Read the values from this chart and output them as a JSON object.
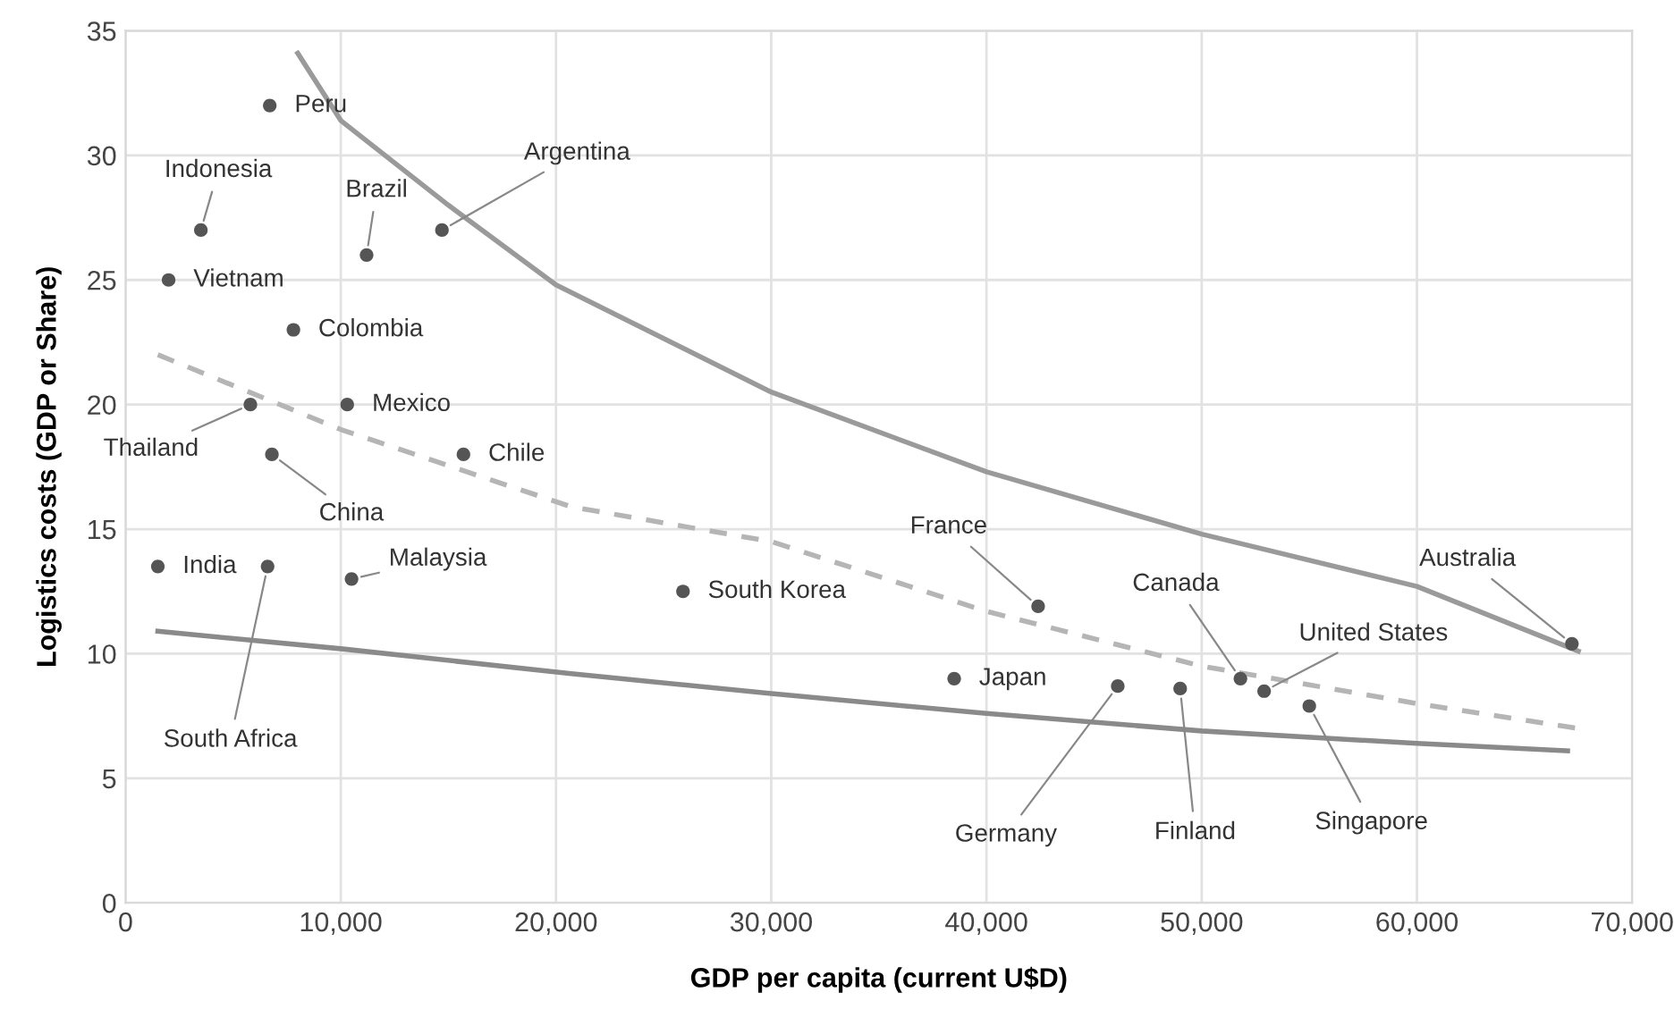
{
  "chart_data": {
    "type": "scatter",
    "xlabel": "GDP per capita (current U$D)",
    "ylabel": "Logistics costs (GDP or Share)",
    "xlim": [
      0,
      70000
    ],
    "ylim": [
      0,
      35
    ],
    "xticks": [
      0,
      {
        "value": 10000,
        "label": "10,000"
      },
      {
        "value": 20000,
        "label": "20,000"
      },
      {
        "value": 30000,
        "label": "30,000"
      },
      {
        "value": 40000,
        "label": "40,000"
      },
      {
        "value": 50000,
        "label": "50,000"
      },
      {
        "value": 60000,
        "label": "60,000"
      },
      {
        "value": 70000,
        "label": "70,000"
      }
    ],
    "yticks": [
      0,
      5,
      10,
      15,
      20,
      25,
      30,
      35
    ],
    "grid": true,
    "series": [
      {
        "color": "#555555",
        "marker": "circle",
        "x": [
          6700,
          3500,
          2000,
          7800,
          11200,
          14700,
          5800,
          10300,
          6800,
          15700,
          1500,
          6600,
          10500,
          25900,
          42400,
          38500,
          46100,
          49000,
          51800,
          52900,
          55000,
          67200
        ],
        "values": [
          32,
          27,
          25,
          23,
          26,
          27,
          20,
          20,
          18,
          18,
          13.5,
          13.5,
          13,
          12.5,
          11.9,
          9,
          8.7,
          8.6,
          9,
          8.5,
          7.9,
          10.4
        ]
      },
      {
        "type": "line",
        "color": "#9a9a9a",
        "line_style": "solid",
        "x": [
          8000,
          10000,
          15000,
          20000,
          30000,
          40000,
          50000,
          60000,
          67500
        ],
        "values": [
          34.1,
          31.4,
          28,
          24.8,
          20.5,
          17.3,
          14.8,
          12.7,
          10.1
        ]
      },
      {
        "type": "line",
        "color": "#b5b5b5",
        "line_style": "dashed",
        "x": [
          1500,
          10000,
          20700,
          30000,
          40000,
          50000,
          60000,
          67500
        ],
        "values": [
          22,
          19,
          15.9,
          14.5,
          11.7,
          9.5,
          8,
          7
        ]
      },
      {
        "type": "line",
        "color": "#8a8a8a",
        "line_style": "solid",
        "x": [
          1500,
          10000,
          20700,
          30000,
          40000,
          50000,
          60000,
          67000
        ],
        "values": [
          10.9,
          10.2,
          9.2,
          8.4,
          7.6,
          6.9,
          6.4,
          6.1
        ]
      }
    ],
    "annotations": [
      {
        "text": "Peru",
        "x": 6700,
        "y": 32
      },
      {
        "text": "Indonesia",
        "x": 3500,
        "y": 27
      },
      {
        "text": "Vietnam",
        "x": 2000,
        "y": 25
      },
      {
        "text": "Colombia",
        "x": 7800,
        "y": 23
      },
      {
        "text": "Brazil",
        "x": 11200,
        "y": 26
      },
      {
        "text": "Argentina",
        "x": 14700,
        "y": 27
      },
      {
        "text": "Thailand",
        "x": 5800,
        "y": 20
      },
      {
        "text": "Mexico",
        "x": 10300,
        "y": 20
      },
      {
        "text": "China",
        "x": 6800,
        "y": 18
      },
      {
        "text": "Chile",
        "x": 15700,
        "y": 18
      },
      {
        "text": "India",
        "x": 1500,
        "y": 13.5
      },
      {
        "text": "South Africa",
        "x": 6600,
        "y": 13.5
      },
      {
        "text": "Malaysia",
        "x": 10500,
        "y": 13
      },
      {
        "text": "South Korea",
        "x": 25900,
        "y": 12.5
      },
      {
        "text": "France",
        "x": 42400,
        "y": 11.9
      },
      {
        "text": "Japan",
        "x": 38500,
        "y": 9
      },
      {
        "text": "Germany",
        "x": 46100,
        "y": 8.7
      },
      {
        "text": "Finland",
        "x": 49000,
        "y": 8.6
      },
      {
        "text": "Canada",
        "x": 51800,
        "y": 9
      },
      {
        "text": "United States",
        "x": 52900,
        "y": 8.5
      },
      {
        "text": "Singapore",
        "x": 55000,
        "y": 7.9
      },
      {
        "text": "Australia",
        "x": 67200,
        "y": 10.4
      }
    ]
  }
}
